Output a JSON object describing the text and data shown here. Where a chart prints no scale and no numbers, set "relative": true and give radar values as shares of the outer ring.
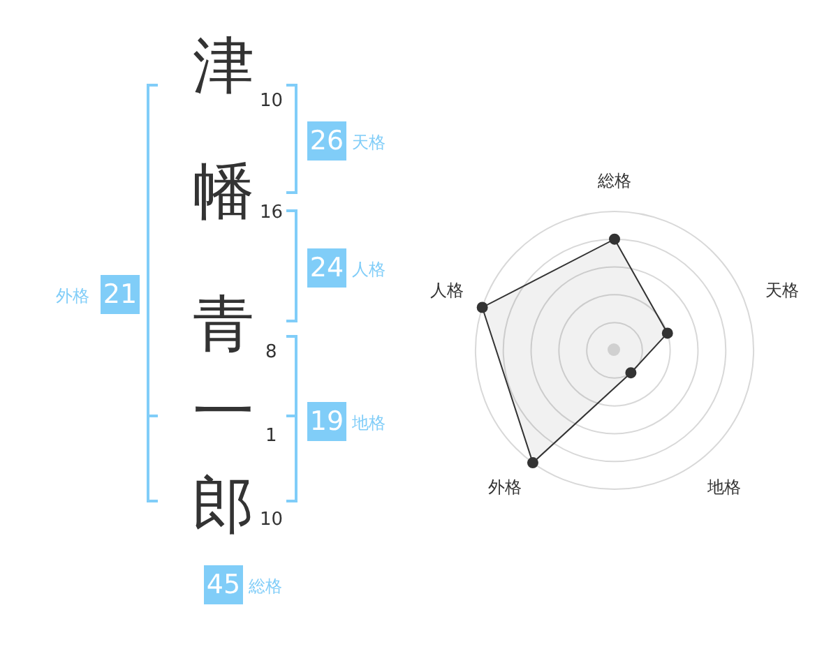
{
  "chart_data": [
    {
      "type": "other",
      "categories": [
        "津",
        "幡",
        "青",
        "一",
        "郎"
      ],
      "color": "#80cdf8",
      "annotations": [
        "10",
        "16",
        "8",
        "1",
        "10",
        "26",
        "天格",
        "24",
        "人格",
        "19",
        "地格",
        "21",
        "外格",
        "45",
        "総格"
      ]
    },
    {
      "type": "radar",
      "categories": [
        "総格",
        "天格",
        "地格",
        "外格",
        "人格"
      ],
      "relative": true,
      "series": [
        {
          "color": "#333333",
          "values": [
            0.8,
            0.4,
            0.2,
            1,
            1
          ]
        }
      ]
    }
  ]
}
